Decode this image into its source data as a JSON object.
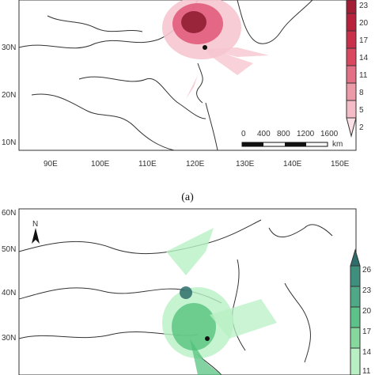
{
  "panel_a": {
    "caption": "(a)",
    "lat_labels": [
      "30N",
      "20N",
      "10N"
    ],
    "lon_labels": [
      "90E",
      "100E",
      "110E",
      "120E",
      "130E",
      "140E",
      "150E"
    ],
    "legend_values": [
      "23",
      "20",
      "17",
      "14",
      "11",
      "8",
      "5",
      "2"
    ],
    "scale_bar": {
      "labels": [
        "0",
        "400",
        "800",
        "1200",
        "1600"
      ],
      "unit": "km"
    },
    "colors": {
      "high": "#8b1a2b",
      "mid": "#e05577",
      "low": "#f6c6cf"
    }
  },
  "panel_b": {
    "lat_labels": [
      "60N",
      "50N",
      "40N",
      "30N"
    ],
    "north_label": "N",
    "legend_values": [
      "26",
      "23",
      "20",
      "17",
      "14",
      "11"
    ],
    "colors": {
      "high": "#2d6d6b",
      "mid": "#4fc07a",
      "low": "#b8f0c4"
    }
  }
}
